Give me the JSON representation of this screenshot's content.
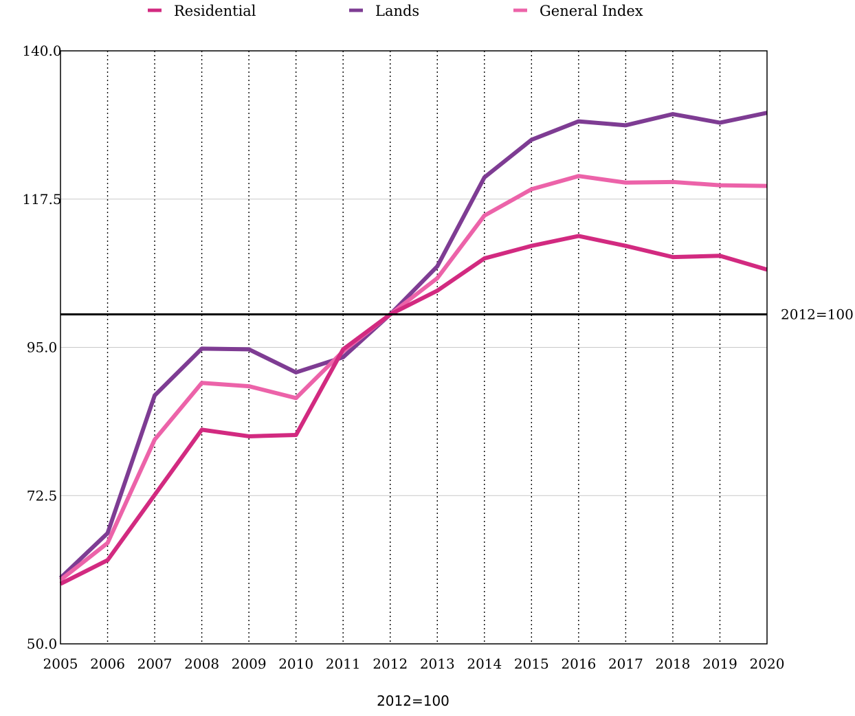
{
  "chart_data": {
    "type": "line",
    "x": [
      2005,
      2006,
      2007,
      2008,
      2009,
      2010,
      2011,
      2012,
      2013,
      2014,
      2015,
      2016,
      2017,
      2018,
      2019,
      2020
    ],
    "x_tick_labels": [
      "2005",
      "2006",
      "2007",
      "2008",
      "2009",
      "2010",
      "2011",
      "2012",
      "2013",
      "2014",
      "2015",
      "2016",
      "2017",
      "2018",
      "2019",
      "2020"
    ],
    "y_tick_values": [
      50,
      72.5,
      95,
      117.5,
      140
    ],
    "y_tick_labels": [
      "50.0",
      "72.5",
      "95.0",
      "117.5",
      "140.0"
    ],
    "ylim": [
      50,
      140
    ],
    "grid": "horizontal solid gridlines; vertical dotted lines at each year",
    "legend_position": "top",
    "reference_line": {
      "value": 100,
      "label": "2012=100",
      "color": "#000000"
    },
    "caption": "2012=100",
    "series": [
      {
        "name": "Residential",
        "color": "#D22A80",
        "values": [
          59.1,
          62.7,
          72.6,
          82.5,
          81.5,
          81.7,
          94.7,
          100.0,
          103.6,
          108.5,
          110.4,
          111.9,
          110.4,
          108.7,
          108.9,
          106.8
        ]
      },
      {
        "name": "Lands",
        "color": "#7E3C93",
        "values": [
          60.0,
          66.8,
          87.7,
          94.8,
          94.7,
          91.2,
          93.5,
          100.0,
          107.3,
          120.8,
          126.5,
          129.3,
          128.7,
          130.4,
          129.1,
          130.6
        ]
      },
      {
        "name": "General Index",
        "color": "#EC63A9",
        "values": [
          59.7,
          65.3,
          81.0,
          89.6,
          89.1,
          87.3,
          94.4,
          100.0,
          105.5,
          115.0,
          119.0,
          121.0,
          120.0,
          120.1,
          119.6,
          119.5
        ]
      }
    ]
  }
}
